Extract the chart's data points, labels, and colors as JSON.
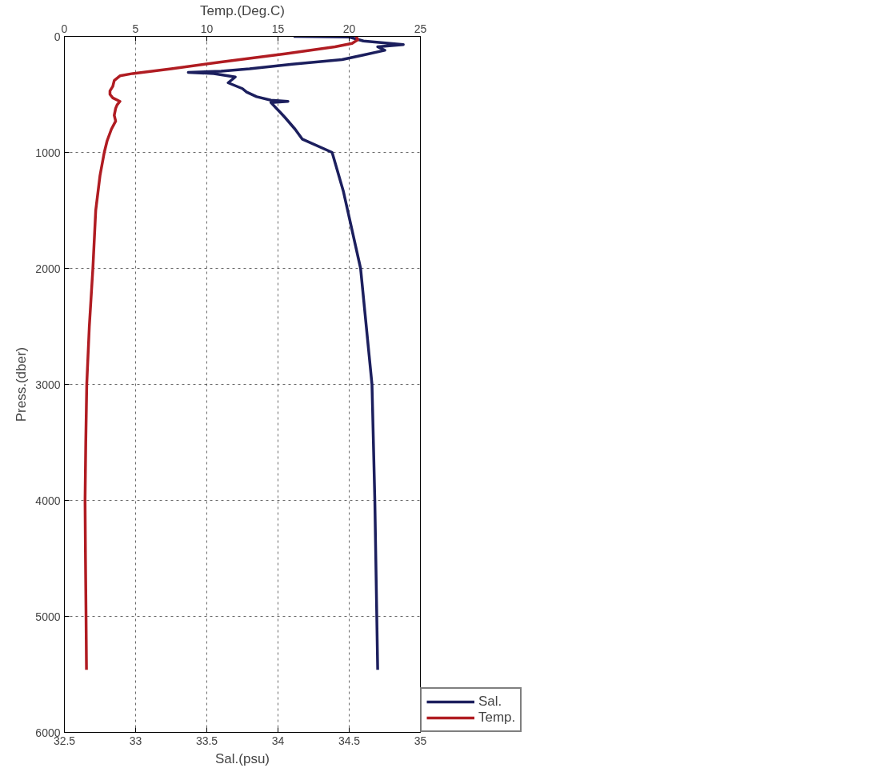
{
  "chart_data": {
    "type": "line",
    "xlabel": "Sal.(psu)",
    "x2label": "Temp.(Deg.C)",
    "ylabel": "Press.(dber)",
    "xlim": [
      32.5,
      35
    ],
    "xticks": [
      32.5,
      33,
      33.5,
      34,
      34.5,
      35
    ],
    "x2lim": [
      0,
      25
    ],
    "x2ticks": [
      0,
      5,
      10,
      15,
      20,
      25
    ],
    "ylim": [
      6000,
      0
    ],
    "yticks": [
      0,
      1000,
      2000,
      3000,
      4000,
      5000,
      6000
    ],
    "grid": true,
    "legend": "right",
    "line_style": "solid",
    "series": [
      {
        "name": "Sal.",
        "color": "#1c1f5e",
        "x": [
          34.11,
          34.5,
          34.6,
          34.88,
          34.7,
          34.75,
          34.6,
          34.45,
          34.1,
          33.8,
          33.6,
          33.37,
          33.55,
          33.7,
          33.65,
          33.75,
          33.78,
          33.85,
          33.95,
          34.07,
          33.95,
          34.02,
          34.05,
          34.12,
          34.17,
          34.38,
          34.46,
          34.58,
          34.66,
          34.68,
          34.7
        ],
        "values": [
          0,
          5,
          40,
          70,
          90,
          120,
          160,
          200,
          240,
          280,
          300,
          310,
          320,
          350,
          400,
          450,
          480,
          520,
          550,
          560,
          570,
          660,
          700,
          800,
          885,
          1000,
          1340,
          2000,
          3000,
          4000,
          5460
        ]
      },
      {
        "name": "Temp.",
        "color": "#b01c22",
        "axis": "x2",
        "x": [
          20.5,
          20.6,
          20.2,
          19.0,
          15.5,
          11,
          7.5,
          4.8,
          3.9,
          3.5,
          3.4,
          3.2,
          3.2,
          3.4,
          3.9,
          3.7,
          3.6,
          3.5,
          3.6,
          3.3,
          3.0,
          2.8,
          2.5,
          2.2,
          2.0,
          1.75,
          1.57,
          1.5,
          1.45,
          1.48,
          1.52,
          1.55
        ],
        "values": [
          0,
          30,
          60,
          90,
          150,
          220,
          280,
          320,
          340,
          380,
          430,
          470,
          500,
          530,
          560,
          590,
          620,
          680,
          730,
          800,
          900,
          1000,
          1200,
          1500,
          2000,
          2500,
          3000,
          3500,
          4000,
          4500,
          5000,
          5460
        ]
      }
    ]
  }
}
